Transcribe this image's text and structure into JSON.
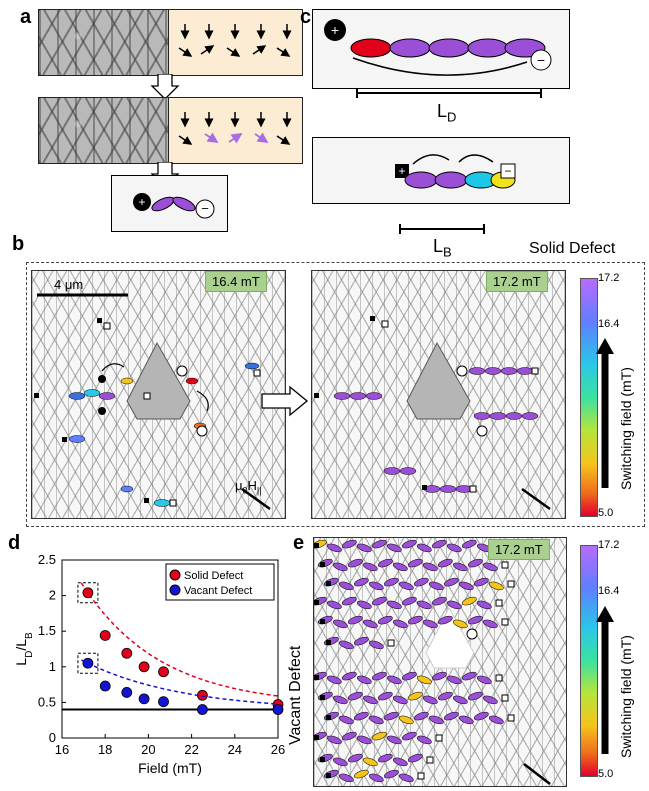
{
  "panels": {
    "a": "a",
    "b": "b",
    "c": "c",
    "d": "d",
    "e": "e"
  },
  "panel_c": {
    "ld_label": "L",
    "ld_sub": "D",
    "lb_label": "L",
    "lb_sub": "B",
    "plus": "+",
    "minus": "−"
  },
  "panel_a": {
    "plus": "+",
    "minus": "−"
  },
  "panel_b": {
    "title": "Solid Defect",
    "scale": "4 μm",
    "field_left": "16.4 mT",
    "field_right": "17.2 mT",
    "hfield": "μ0H||",
    "hfield_mu": "μ",
    "hfield_sub": "0",
    "hfield_H": "H",
    "hfield_par": "||",
    "cbar_top": "17.2",
    "cbar_mid": "16.4",
    "cbar_bottom": "5.0",
    "cbar_label": "Switching field (mT)"
  },
  "panel_e": {
    "side_label": "Vacant Defect",
    "field": "17.2 mT",
    "cbar_top": "17.2",
    "cbar_mid": "16.4",
    "cbar_bottom": "5.0",
    "cbar_label": "Switching field (mT)"
  },
  "colors": {
    "solid": "#e3001b",
    "vacant": "#1414d2",
    "purple": "#9a4fd6",
    "cream": "#fbecd3"
  },
  "chart_data": {
    "type": "scatter",
    "xlabel": "Field (mT)",
    "ylabel": "L_D/L_B",
    "xlim": [
      16,
      26
    ],
    "ylim": [
      0,
      2.5
    ],
    "xticks": [
      "16",
      "18",
      "20",
      "22",
      "24",
      "26"
    ],
    "yticks": [
      "0",
      "0.5",
      "1",
      "1.5",
      "2",
      "2.5"
    ],
    "legend_placement": "top-right",
    "series": [
      {
        "name": "Solid Defect",
        "color": "#e3001b",
        "x": [
          17.2,
          18.0,
          19.0,
          19.8,
          20.7,
          22.5,
          26.0
        ],
        "y": [
          2.04,
          1.44,
          1.19,
          1.0,
          0.93,
          0.6,
          0.47
        ]
      },
      {
        "name": "Vacant Defect",
        "color": "#1414d2",
        "x": [
          17.2,
          18.0,
          19.0,
          19.8,
          20.7,
          22.5,
          26.0
        ],
        "y": [
          1.05,
          0.73,
          0.64,
          0.55,
          0.51,
          0.4,
          0.4
        ]
      }
    ],
    "reference_line_y": 0.4
  }
}
